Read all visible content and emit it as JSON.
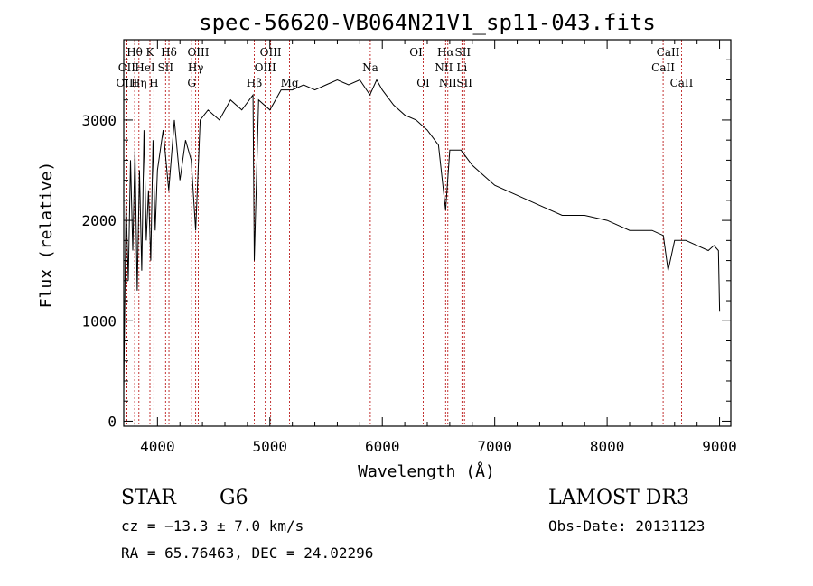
{
  "chart_data": {
    "type": "line",
    "title": "spec-56620-VB064N21V1_sp11-043.fits",
    "xlabel": "Wavelength (Å)",
    "ylabel": "Flux (relative)",
    "xlim": [
      3700,
      9100
    ],
    "ylim": [
      -50,
      3800
    ],
    "x_ticks": [
      4000,
      5000,
      6000,
      7000,
      8000,
      9000
    ],
    "y_ticks": [
      0,
      1000,
      2000,
      3000
    ],
    "grid": false,
    "series": [
      {
        "name": "flux",
        "x": [
          3700,
          3720,
          3740,
          3760,
          3780,
          3800,
          3820,
          3840,
          3860,
          3880,
          3900,
          3920,
          3940,
          3960,
          3980,
          4000,
          4050,
          4100,
          4150,
          4200,
          4250,
          4300,
          4340,
          4380,
          4450,
          4550,
          4650,
          4750,
          4850,
          4861,
          4900,
          5000,
          5100,
          5200,
          5300,
          5400,
          5500,
          5600,
          5700,
          5800,
          5890,
          5950,
          6000,
          6100,
          6200,
          6300,
          6400,
          6500,
          6563,
          6600,
          6700,
          6800,
          6900,
          7000,
          7200,
          7400,
          7600,
          7800,
          8000,
          8200,
          8400,
          8500,
          8542,
          8600,
          8700,
          8800,
          8900,
          8950,
          8990,
          9000
        ],
        "y": [
          300,
          2200,
          1400,
          2600,
          1700,
          2700,
          1300,
          2500,
          1500,
          2900,
          1800,
          2300,
          1600,
          2800,
          1900,
          2500,
          2900,
          2300,
          3000,
          2400,
          2800,
          2600,
          1900,
          3000,
          3100,
          3000,
          3200,
          3100,
          3250,
          1600,
          3200,
          3100,
          3300,
          3300,
          3350,
          3300,
          3350,
          3400,
          3350,
          3400,
          3250,
          3400,
          3300,
          3150,
          3050,
          3000,
          2900,
          2750,
          2100,
          2700,
          2700,
          2550,
          2450,
          2350,
          2250,
          2150,
          2050,
          2050,
          2000,
          1900,
          1900,
          1850,
          1500,
          1800,
          1800,
          1750,
          1700,
          1750,
          1700,
          1100
        ]
      }
    ],
    "line_labels": [
      {
        "text": "Hθ",
        "wl": 3797,
        "row": 1
      },
      {
        "text": "OII",
        "wl": 3727,
        "row": 2
      },
      {
        "text": "OIII",
        "wl": 3727,
        "row": 3
      },
      {
        "text": "K",
        "wl": 3933,
        "row": 1
      },
      {
        "text": "HeI",
        "wl": 3889,
        "row": 2
      },
      {
        "text": "Hη",
        "wl": 3835,
        "row": 3
      },
      {
        "text": "Hδ",
        "wl": 4102,
        "row": 1
      },
      {
        "text": "SII",
        "wl": 4072,
        "row": 2
      },
      {
        "text": "H",
        "wl": 3968,
        "row": 3
      },
      {
        "text": "OIII",
        "wl": 4363,
        "row": 1
      },
      {
        "text": "Hγ",
        "wl": 4340,
        "row": 2
      },
      {
        "text": "G",
        "wl": 4304,
        "row": 3
      },
      {
        "text": "OIII",
        "wl": 5007,
        "row": 1
      },
      {
        "text": "OIII",
        "wl": 4959,
        "row": 2
      },
      {
        "text": "Hβ",
        "wl": 4861,
        "row": 3
      },
      {
        "text": "Mg",
        "wl": 5175,
        "row": 3
      },
      {
        "text": "Na",
        "wl": 5893,
        "row": 2
      },
      {
        "text": "OI",
        "wl": 6300,
        "row": 1
      },
      {
        "text": "OI",
        "wl": 6364,
        "row": 3
      },
      {
        "text": "Hα",
        "wl": 6563,
        "row": 1
      },
      {
        "text": "NII",
        "wl": 6548,
        "row": 2
      },
      {
        "text": "NII",
        "wl": 6583,
        "row": 3
      },
      {
        "text": "SII",
        "wl": 6716,
        "row": 1
      },
      {
        "text": "Li",
        "wl": 6708,
        "row": 2
      },
      {
        "text": "SII",
        "wl": 6731,
        "row": 3
      },
      {
        "text": "CaII",
        "wl": 8542,
        "row": 1
      },
      {
        "text": "CaII",
        "wl": 8498,
        "row": 2
      },
      {
        "text": "CaII",
        "wl": 8662,
        "row": 3
      }
    ]
  },
  "info": {
    "class": "STAR",
    "subclass": "G6",
    "survey": "LAMOST DR3",
    "cz": "cz = −13.3 ± 7.0 km/s",
    "obs_date": "Obs-Date: 20131123",
    "coords": "RA =  65.76463, DEC =  24.02296"
  },
  "colors": {
    "line_marker": "#b40000",
    "spectrum": "#000000"
  }
}
